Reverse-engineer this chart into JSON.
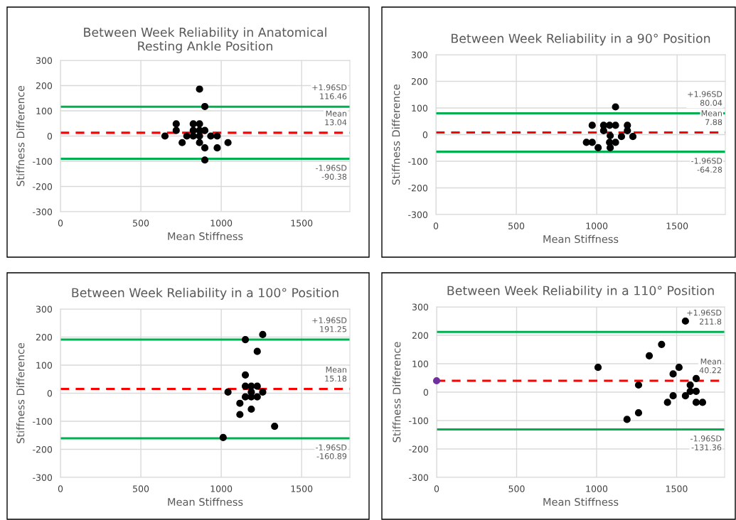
{
  "chart_data": [
    {
      "type": "scatter",
      "title": "Between Week Reliability in Anatomical\nResting Ankle Position",
      "xlabel": "Mean Stiffness",
      "ylabel": "Stiffness Difference",
      "xlim": [
        0,
        1800
      ],
      "ylim": [
        -300,
        300
      ],
      "xticks": [
        0,
        500,
        1000,
        1500
      ],
      "yticks": [
        -300,
        -200,
        -100,
        0,
        100,
        200,
        300
      ],
      "grid": true,
      "marker": "circle",
      "series": [
        {
          "color": "#000000",
          "x": [
            865,
            898,
            720,
            720,
            826,
            865,
            826,
            865,
            898,
            650,
            786,
            826,
            865,
            935,
            975,
            757,
            865,
            1042,
            898,
            975,
            898
          ],
          "values": [
            186,
            117,
            48,
            22,
            48,
            48,
            22,
            22,
            22,
            0,
            0,
            0,
            0,
            0,
            0,
            -26,
            -26,
            -26,
            -47,
            -47,
            -95
          ]
        }
      ],
      "ref_lines": [
        {
          "axis": "y",
          "value": 116.46,
          "label": "+1.96SD\n116.46",
          "color": "#00b050",
          "line_style": "solid"
        },
        {
          "axis": "y",
          "value": 13.04,
          "label": "Mean\n13.04",
          "color": "#ff0000",
          "line_style": "dashed"
        },
        {
          "axis": "y",
          "value": -90.38,
          "label": "-1.96SD\n-90.38",
          "color": "#00b050",
          "line_style": "solid"
        }
      ]
    },
    {
      "type": "scatter",
      "title": "Between Week Reliability in a 90° Position",
      "xlabel": "Mean Stiffness",
      "ylabel": "Stiffness Difference",
      "xlim": [
        0,
        1800
      ],
      "ylim": [
        -300,
        300
      ],
      "xticks": [
        0,
        500,
        1000,
        1500
      ],
      "yticks": [
        -300,
        -200,
        -100,
        0,
        100,
        200,
        300
      ],
      "grid": true,
      "marker": "circle",
      "series": [
        {
          "color": "#000000",
          "x": [
            1117,
            972,
            1043,
            1080,
            1117,
            1191,
            1043,
            1191,
            1084,
            1154,
            1225,
            936,
            972,
            1080,
            1117,
            1009,
            1084
          ],
          "values": [
            104,
            35,
            35,
            35,
            35,
            35,
            15,
            15,
            -4,
            -7,
            -7,
            -29,
            -29,
            -29,
            -29,
            -49,
            -49
          ]
        }
      ],
      "ref_lines": [
        {
          "axis": "y",
          "value": 80.04,
          "label": "+1.96SD\n80.04",
          "color": "#00b050",
          "line_style": "solid"
        },
        {
          "axis": "y",
          "value": 7.88,
          "label": "Mean\n7.88",
          "color": "#ff0000",
          "line_style": "dashed"
        },
        {
          "axis": "y",
          "value": -64.28,
          "label": "-1.96SD\n-64.28",
          "color": "#00b050",
          "line_style": "solid"
        }
      ]
    },
    {
      "type": "scatter",
      "title": "Between Week Reliability in a 100° Position",
      "xlabel": "Mean Stiffness",
      "ylabel": "Stiffness Difference",
      "xlim": [
        0,
        1800
      ],
      "ylim": [
        -300,
        300
      ],
      "xticks": [
        0,
        500,
        1000,
        1500
      ],
      "yticks": [
        -300,
        -200,
        -100,
        0,
        100,
        200,
        300
      ],
      "grid": true,
      "marker": "circle",
      "series": [
        {
          "color": "#000000",
          "x": [
            1258,
            1150,
            1224,
            1150,
            1150,
            1187,
            1224,
            1042,
            1187,
            1258,
            1150,
            1187,
            1224,
            1116,
            1187,
            1116,
            1332,
            1012
          ],
          "values": [
            209,
            191,
            149,
            65,
            25,
            25,
            25,
            4,
            4,
            4,
            -13,
            -13,
            -13,
            -36,
            -57,
            -76,
            -118,
            -158
          ]
        }
      ],
      "ref_lines": [
        {
          "axis": "y",
          "value": 191.25,
          "label": "+1.96SD\n191.25",
          "color": "#00b050",
          "line_style": "solid"
        },
        {
          "axis": "y",
          "value": 15.18,
          "label": "Mean\n15.18",
          "color": "#ff0000",
          "line_style": "dashed"
        },
        {
          "axis": "y",
          "value": -160.89,
          "label": "-1.96SD\n-160.89",
          "color": "#00b050",
          "line_style": "solid"
        }
      ]
    },
    {
      "type": "scatter",
      "title": "Between Week Reliability in a 110° Position",
      "xlabel": "Mean Stiffness",
      "ylabel": "Stiffness Difference",
      "xlim": [
        0,
        1800
      ],
      "ylim": [
        -300,
        300
      ],
      "xticks": [
        0,
        500,
        1000,
        1500
      ],
      "yticks": [
        -300,
        -200,
        -100,
        0,
        100,
        200,
        300
      ],
      "grid": true,
      "marker": "circle",
      "series": [
        {
          "color": "#000000",
          "x": [
            1555,
            1406,
            1329,
            1009,
            1515,
            1478,
            1622,
            1262,
            1585,
            1585,
            1622,
            1478,
            1555,
            1443,
            1622,
            1662,
            1262,
            1190
          ],
          "values": [
            250,
            168,
            128,
            87,
            87,
            64,
            48,
            25,
            25,
            3,
            3,
            -13,
            -13,
            -36,
            -36,
            -36,
            -73,
            -96
          ]
        },
        {
          "color": "#7030a0",
          "x": [
            0
          ],
          "values": [
            40
          ]
        }
      ],
      "ref_lines": [
        {
          "axis": "y",
          "value": 211.8,
          "label": "+1.96SD\n211.8",
          "color": "#00b050",
          "line_style": "solid"
        },
        {
          "axis": "y",
          "value": 40.22,
          "label": "Mean\n40.22",
          "color": "#ff0000",
          "line_style": "dashed"
        },
        {
          "axis": "y",
          "value": -131.36,
          "label": "-1.96SD\n-131.36",
          "color": "#00b050",
          "line_style": "solid"
        }
      ]
    }
  ]
}
